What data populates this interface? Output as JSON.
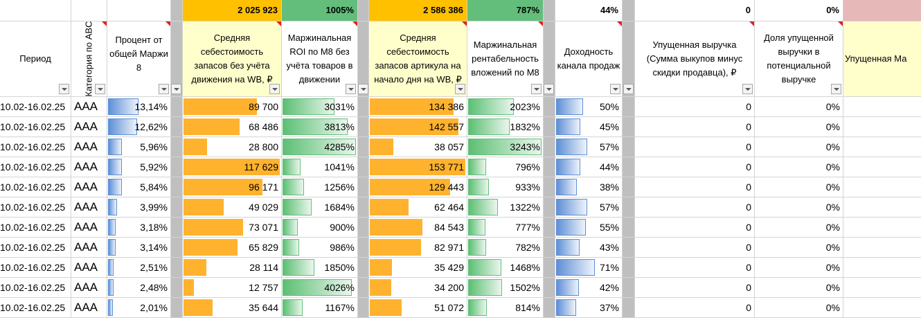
{
  "summary": {
    "avg_cost_no_move": "2 025 923",
    "roi_m8": "1005%",
    "avg_cost_start_day": "2 586 386",
    "margin_return_m8": "787%",
    "channel_yield": "44%",
    "lost_revenue": "0",
    "lost_revenue_share": "0%"
  },
  "headers": {
    "period": "Период",
    "abc": "Категория по ABC",
    "margin_pct": "Процент от общей Маржи 8",
    "avg_cost_no_move": "Средняя себестоимость запасов без учёта движения на WB, ₽",
    "roi_m8": "Маржинальная ROI по М8 без учёта товаров в движении",
    "avg_cost_start_day": "Средняя себестоимость запасов артикула на начало дня на WB, ₽",
    "margin_return_m8": "Маржинальная рентабельность вложений по М8",
    "channel_yield": "Доходность канала продаж",
    "lost_revenue": "Упущенная выручка (Сумма выкупов минус скидки продавца), ₽",
    "lost_revenue_share": "Доля упущенной выручки в потенциальной выручке",
    "lost_margin": "Упущенная Ма"
  },
  "rows": [
    {
      "period": "10.02-16.02.25",
      "abc": "AAA",
      "margin_pct": "13,14%",
      "margin_pct_v": 13.14,
      "cost1": "89 700",
      "cost1_v": 89700,
      "roi": "3031%",
      "roi_v": 3031,
      "cost2": "134 386",
      "cost2_v": 134386,
      "ret": "2023%",
      "ret_v": 2023,
      "yield": "50%",
      "yield_v": 50,
      "lost": "0",
      "lost_share": "0%"
    },
    {
      "period": "10.02-16.02.25",
      "abc": "AAA",
      "margin_pct": "12,62%",
      "margin_pct_v": 12.62,
      "cost1": "68 486",
      "cost1_v": 68486,
      "roi": "3813%",
      "roi_v": 3813,
      "cost2": "142 557",
      "cost2_v": 142557,
      "ret": "1832%",
      "ret_v": 1832,
      "yield": "45%",
      "yield_v": 45,
      "lost": "0",
      "lost_share": "0%"
    },
    {
      "period": "10.02-16.02.25",
      "abc": "AAA",
      "margin_pct": "5,96%",
      "margin_pct_v": 5.96,
      "cost1": "28 800",
      "cost1_v": 28800,
      "roi": "4285%",
      "roi_v": 4285,
      "cost2": "38 057",
      "cost2_v": 38057,
      "ret": "3243%",
      "ret_v": 3243,
      "yield": "57%",
      "yield_v": 57,
      "lost": "0",
      "lost_share": "0%"
    },
    {
      "period": "10.02-16.02.25",
      "abc": "AAA",
      "margin_pct": "5,92%",
      "margin_pct_v": 5.92,
      "cost1": "117 629",
      "cost1_v": 117629,
      "roi": "1041%",
      "roi_v": 1041,
      "cost2": "153 771",
      "cost2_v": 153771,
      "ret": "796%",
      "ret_v": 796,
      "yield": "44%",
      "yield_v": 44,
      "lost": "0",
      "lost_share": "0%"
    },
    {
      "period": "10.02-16.02.25",
      "abc": "AAA",
      "margin_pct": "5,84%",
      "margin_pct_v": 5.84,
      "cost1": "96 171",
      "cost1_v": 96171,
      "roi": "1256%",
      "roi_v": 1256,
      "cost2": "129 443",
      "cost2_v": 129443,
      "ret": "933%",
      "ret_v": 933,
      "yield": "38%",
      "yield_v": 38,
      "lost": "0",
      "lost_share": "0%"
    },
    {
      "period": "10.02-16.02.25",
      "abc": "AAA",
      "margin_pct": "3,99%",
      "margin_pct_v": 3.99,
      "cost1": "49 029",
      "cost1_v": 49029,
      "roi": "1684%",
      "roi_v": 1684,
      "cost2": "62 464",
      "cost2_v": 62464,
      "ret": "1322%",
      "ret_v": 1322,
      "yield": "57%",
      "yield_v": 57,
      "lost": "0",
      "lost_share": "0%"
    },
    {
      "period": "10.02-16.02.25",
      "abc": "AAA",
      "margin_pct": "3,18%",
      "margin_pct_v": 3.18,
      "cost1": "73 071",
      "cost1_v": 73071,
      "roi": "900%",
      "roi_v": 900,
      "cost2": "84 543",
      "cost2_v": 84543,
      "ret": "777%",
      "ret_v": 777,
      "yield": "55%",
      "yield_v": 55,
      "lost": "0",
      "lost_share": "0%"
    },
    {
      "period": "10.02-16.02.25",
      "abc": "AAA",
      "margin_pct": "3,14%",
      "margin_pct_v": 3.14,
      "cost1": "65 829",
      "cost1_v": 65829,
      "roi": "986%",
      "roi_v": 986,
      "cost2": "82 971",
      "cost2_v": 82971,
      "ret": "782%",
      "ret_v": 782,
      "yield": "43%",
      "yield_v": 43,
      "lost": "0",
      "lost_share": "0%"
    },
    {
      "period": "10.02-16.02.25",
      "abc": "AAA",
      "margin_pct": "2,51%",
      "margin_pct_v": 2.51,
      "cost1": "28 114",
      "cost1_v": 28114,
      "roi": "1850%",
      "roi_v": 1850,
      "cost2": "35 429",
      "cost2_v": 35429,
      "ret": "1468%",
      "ret_v": 1468,
      "yield": "71%",
      "yield_v": 71,
      "lost": "0",
      "lost_share": "0%"
    },
    {
      "period": "10.02-16.02.25",
      "abc": "AAA",
      "margin_pct": "2,48%",
      "margin_pct_v": 2.48,
      "cost1": "12 757",
      "cost1_v": 12757,
      "roi": "4026%",
      "roi_v": 4026,
      "cost2": "34 200",
      "cost2_v": 34200,
      "ret": "1502%",
      "ret_v": 1502,
      "yield": "42%",
      "yield_v": 42,
      "lost": "0",
      "lost_share": "0%"
    },
    {
      "period": "10.02-16.02.25",
      "abc": "AAA",
      "margin_pct": "2,01%",
      "margin_pct_v": 2.01,
      "cost1": "35 644",
      "cost1_v": 35644,
      "roi": "1167%",
      "roi_v": 1167,
      "cost2": "51 072",
      "cost2_v": 51072,
      "ret": "814%",
      "ret_v": 814,
      "yield": "37%",
      "yield_v": 37,
      "lost": "0",
      "lost_share": "0%"
    }
  ],
  "bar_scale": {
    "margin_pct_max": 13.14,
    "cost1_max": 117629,
    "roi_max": 4285,
    "cost2_max": 153771,
    "ret_max": 3243,
    "yield_max": 71
  },
  "colors": {
    "orange": "#ffc000",
    "green": "#63be7b",
    "header_yellow": "#ffffcc",
    "pink": "#e6b8b7",
    "gray": "#bfbfbf"
  }
}
